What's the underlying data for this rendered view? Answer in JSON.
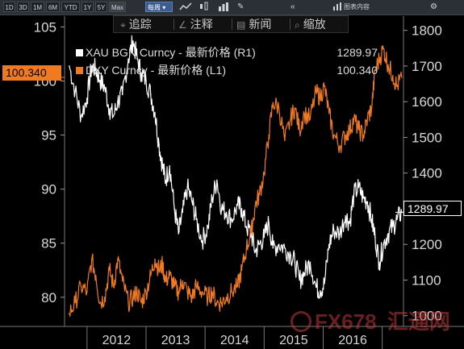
{
  "topbar": {
    "periods": [
      "1D",
      "3D",
      "1M",
      "6M",
      "YTD",
      "1Y",
      "5Y",
      "Max"
    ],
    "active_period": "Max",
    "select_label": "每周",
    "right_label": "图表内容",
    "gear_icon": "gear-icon"
  },
  "toolbar": {
    "track_label": "追踪",
    "annotate_label": "注释",
    "news_label": "新闻",
    "zoom_label": "缩放"
  },
  "legend": {
    "row1_label": "XAU BGN Curncy - 最新价格 (R1)",
    "row1_value": "1289.97",
    "row1_color": "#ffffff",
    "row2_label": "DXY Curncy - 最新价格 (L1)",
    "row2_value": "100.340",
    "row2_color": "#f07a22"
  },
  "tags": {
    "left_value": "100.340",
    "right_value": "1289.97"
  },
  "watermark": {
    "text": "FX678",
    "cn": "汇通网"
  },
  "chart_data": {
    "type": "line",
    "x_labels": [
      "2012",
      "2013",
      "2014",
      "2015",
      "2016"
    ],
    "y_left": {
      "ticks": [
        80,
        85,
        90,
        95,
        100,
        105
      ],
      "ylim": [
        77.3,
        106
      ]
    },
    "y_right": {
      "ticks": [
        1000,
        1100,
        1200,
        1300,
        1400,
        1500,
        1600,
        1700,
        1800
      ],
      "ylim": [
        970,
        1840
      ]
    },
    "grid": false,
    "series": [
      {
        "name": "XAU BGN Curncy - 最新价格 (R1)",
        "axis": "right",
        "color": "#ffffff",
        "x": [
          2011.7,
          2011.8,
          2011.9,
          2012.0,
          2012.08,
          2012.15,
          2012.22,
          2012.3,
          2012.38,
          2012.45,
          2012.52,
          2012.6,
          2012.7,
          2012.78,
          2012.85,
          2012.92,
          2013.0,
          2013.08,
          2013.15,
          2013.22,
          2013.28,
          2013.33,
          2013.4,
          2013.48,
          2013.55,
          2013.62,
          2013.7,
          2013.78,
          2013.85,
          2013.95,
          2014.05,
          2014.12,
          2014.2,
          2014.28,
          2014.36,
          2014.45,
          2014.55,
          2014.62,
          2014.7,
          2014.78,
          2014.85,
          2014.92,
          2015.0,
          2015.08,
          2015.15,
          2015.25,
          2015.35,
          2015.45,
          2015.52,
          2015.6,
          2015.68,
          2015.78,
          2015.88,
          2015.95,
          2016.02,
          2016.1,
          2016.18,
          2016.28,
          2016.38,
          2016.45,
          2016.52,
          2016.6,
          2016.68,
          2016.75,
          2016.82,
          2016.88,
          2016.95,
          2017.02,
          2017.1,
          2017.18,
          2017.25,
          2017.33
        ],
        "y": [
          1700,
          1630,
          1560,
          1610,
          1700,
          1690,
          1660,
          1640,
          1580,
          1560,
          1600,
          1620,
          1720,
          1770,
          1720,
          1680,
          1660,
          1620,
          1570,
          1480,
          1420,
          1380,
          1420,
          1300,
          1230,
          1290,
          1360,
          1320,
          1270,
          1210,
          1250,
          1330,
          1380,
          1300,
          1290,
          1270,
          1310,
          1300,
          1250,
          1230,
          1180,
          1200,
          1220,
          1260,
          1190,
          1200,
          1190,
          1170,
          1150,
          1100,
          1120,
          1150,
          1080,
          1070,
          1090,
          1200,
          1240,
          1230,
          1280,
          1260,
          1340,
          1360,
          1330,
          1320,
          1270,
          1220,
          1150,
          1200,
          1230,
          1250,
          1270,
          1289.97
        ]
      },
      {
        "name": "DXY Curncy - 最新价格 (L1)",
        "axis": "left",
        "color": "#f07a22",
        "x": [
          2011.7,
          2011.8,
          2011.9,
          2012.0,
          2012.08,
          2012.15,
          2012.22,
          2012.3,
          2012.38,
          2012.45,
          2012.52,
          2012.6,
          2012.7,
          2012.78,
          2012.85,
          2012.92,
          2013.0,
          2013.08,
          2013.15,
          2013.22,
          2013.28,
          2013.33,
          2013.4,
          2013.48,
          2013.55,
          2013.62,
          2013.7,
          2013.78,
          2013.85,
          2013.95,
          2014.05,
          2014.12,
          2014.2,
          2014.28,
          2014.36,
          2014.45,
          2014.55,
          2014.62,
          2014.7,
          2014.78,
          2014.85,
          2014.92,
          2015.0,
          2015.08,
          2015.15,
          2015.25,
          2015.35,
          2015.45,
          2015.52,
          2015.6,
          2015.68,
          2015.78,
          2015.88,
          2015.95,
          2016.02,
          2016.1,
          2016.18,
          2016.28,
          2016.38,
          2016.45,
          2016.52,
          2016.6,
          2016.68,
          2016.75,
          2016.82,
          2016.88,
          2016.95,
          2017.02,
          2017.1,
          2017.18,
          2017.25,
          2017.33
        ],
        "y": [
          78.5,
          79.5,
          81.0,
          80.5,
          83.5,
          82.0,
          79.5,
          80.0,
          82.5,
          81.0,
          83.5,
          81.5,
          79.5,
          80.0,
          80.5,
          79.5,
          80.5,
          82.0,
          83.5,
          82.5,
          83.0,
          81.5,
          82.0,
          81.0,
          80.5,
          81.5,
          80.5,
          80.0,
          81.0,
          80.5,
          80.0,
          80.5,
          79.5,
          79.5,
          80.0,
          80.5,
          81.0,
          82.5,
          84.5,
          86.0,
          88.5,
          89.5,
          91.5,
          95.0,
          98.0,
          97.5,
          94.5,
          96.5,
          97.5,
          95.5,
          97.0,
          96.5,
          99.0,
          98.5,
          99.5,
          97.0,
          95.0,
          94.0,
          95.0,
          95.5,
          96.5,
          95.5,
          95.0,
          96.5,
          97.5,
          101.0,
          102.0,
          103.0,
          101.5,
          100.5,
          99.5,
          100.34
        ]
      }
    ]
  }
}
